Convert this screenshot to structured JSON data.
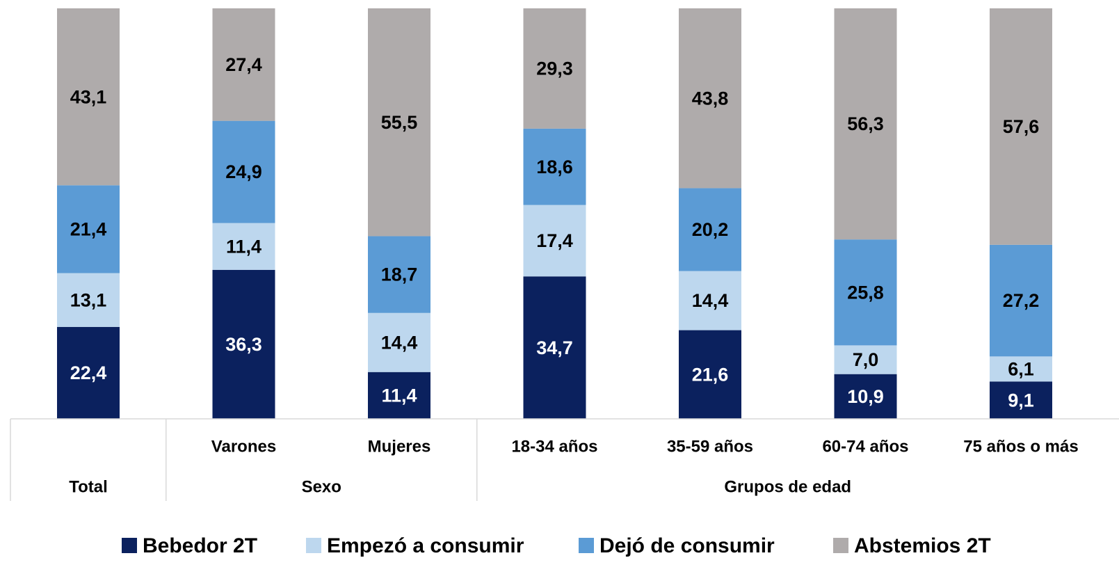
{
  "chart_data": {
    "type": "stacked_bar",
    "categories": [
      null,
      "Varones",
      "Mujeres",
      "18-34 años",
      "35-59 años",
      "60-74 años",
      "75 años o más"
    ],
    "groups": [
      {
        "name": "Total",
        "span": 1
      },
      {
        "name": "Sexo",
        "span": 2
      },
      {
        "name": "Grupos de edad",
        "span": 4
      }
    ],
    "series": [
      {
        "name": "Bebedor 2T",
        "color": "#0b215e",
        "label_color": "#ffffff",
        "values": [
          22.4,
          36.3,
          11.4,
          34.7,
          21.6,
          10.9,
          9.1
        ],
        "value_labels": [
          "22,4",
          "36,3",
          "11,4",
          "34,7",
          "21,6",
          "10,9",
          "9,1"
        ]
      },
      {
        "name": "Empezó a consumir",
        "color": "#bdd7ee",
        "label_color": "#000000",
        "values": [
          13.1,
          11.4,
          14.4,
          17.4,
          14.4,
          7.0,
          6.1
        ],
        "value_labels": [
          "13,1",
          "11,4",
          "14,4",
          "17,4",
          "14,4",
          "7,0",
          "6,1"
        ]
      },
      {
        "name": "Dejó de consumir",
        "color": "#5b9bd5",
        "label_color": "#000000",
        "values": [
          21.4,
          24.9,
          18.7,
          18.6,
          20.2,
          25.8,
          27.2
        ],
        "value_labels": [
          "21,4",
          "24,9",
          "18,7",
          "18,6",
          "20,2",
          "25,8",
          "27,2"
        ]
      },
      {
        "name": "Abstemios 2T",
        "color": "#afabab",
        "label_color": "#000000",
        "values": [
          43.1,
          27.4,
          55.5,
          29.3,
          43.8,
          56.3,
          57.6
        ],
        "value_labels": [
          "43,1",
          "27,4",
          "55,5",
          "29,3",
          "43,8",
          "56,3",
          "57,6"
        ]
      }
    ],
    "ylim": [
      0,
      100
    ],
    "legend": "bottom"
  }
}
